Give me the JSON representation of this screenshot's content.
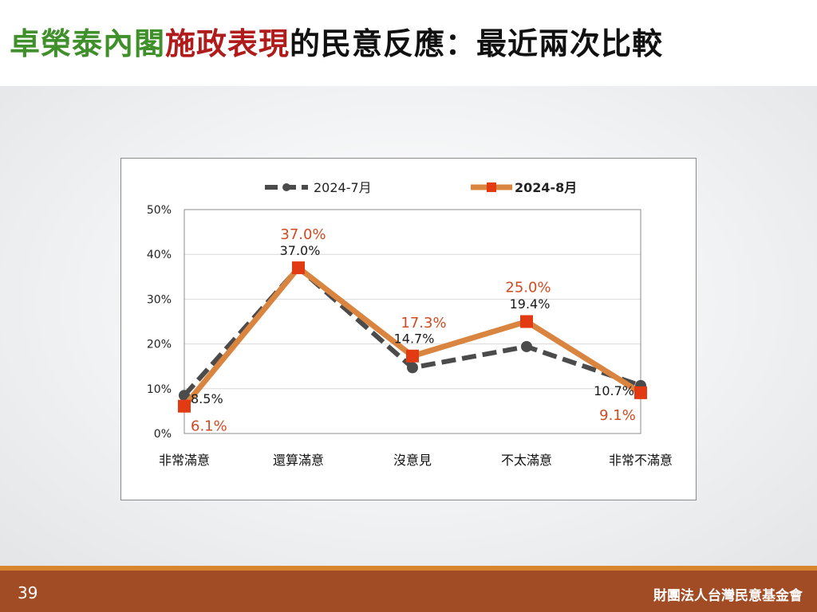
{
  "title": {
    "segments": [
      {
        "text": "卓榮泰內閣",
        "color": "#3f8f2a"
      },
      {
        "text": "施政表現",
        "color": "#b01c1c"
      },
      {
        "text": "的民意反應：最近兩次比較",
        "color": "#111111"
      }
    ]
  },
  "footer": {
    "page_number": "39",
    "organization": "財團法人台灣民意基金會"
  },
  "colors": {
    "series_2024_07": "#4b4b4b",
    "series_2024_08": "#d9843f",
    "marker_2024_08": "#e23a12",
    "label_2024_08": "#d24a20",
    "footer_bar": "#a24c25",
    "footer_line": "#d8862f"
  },
  "chart_data": {
    "type": "line",
    "categories": [
      "非常滿意",
      "還算滿意",
      "沒意見",
      "不太滿意",
      "非常不滿意"
    ],
    "ylim": [
      0,
      50
    ],
    "yticks": [
      "0%",
      "10%",
      "20%",
      "30%",
      "40%",
      "50%"
    ],
    "grid": true,
    "legend_position": "top",
    "series": [
      {
        "name": "2024-7月",
        "values": [
          8.5,
          37.0,
          14.7,
          19.4,
          10.7
        ],
        "labels": [
          "8.5%",
          "37.0%",
          "14.7%",
          "19.4%",
          "10.7%"
        ],
        "style": "dashed",
        "marker": "circle"
      },
      {
        "name": "2024-8月",
        "values": [
          6.1,
          37.0,
          17.3,
          25.0,
          9.1
        ],
        "labels": [
          "6.1%",
          "37.0%",
          "17.3%",
          "25.0%",
          "9.1%"
        ],
        "style": "solid",
        "marker": "square"
      }
    ]
  }
}
